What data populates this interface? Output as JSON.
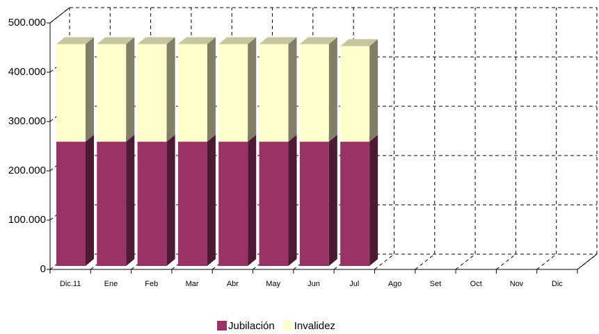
{
  "chart_data": {
    "type": "bar3d_stacked",
    "categories": [
      "Dic.11",
      "Ene",
      "Feb",
      "Mar",
      "Abr",
      "May",
      "Jun",
      "Jul",
      "Ago",
      "Set",
      "Oct",
      "Nov",
      "Dic"
    ],
    "series": [
      {
        "name": "Jubilación",
        "color": "#993366",
        "values": [
          252000,
          252000,
          252000,
          252000,
          252000,
          252000,
          252000,
          252000,
          null,
          null,
          null,
          null,
          null
        ]
      },
      {
        "name": "Invalidez",
        "color": "#FFFFCC",
        "values": [
          198000,
          198000,
          198000,
          198000,
          198000,
          198000,
          198000,
          194000,
          null,
          null,
          null,
          null,
          null
        ]
      }
    ],
    "ylim": [
      0,
      500000
    ],
    "yticks": [
      0,
      {
        "value": 100000,
        "label": "100.000"
      },
      {
        "value": 200000,
        "label": "200.000"
      },
      {
        "value": 300000,
        "label": "300.000"
      },
      {
        "value": 400000,
        "label": "400.000"
      },
      {
        "value": 500000,
        "label": "500.000"
      }
    ],
    "grid": true,
    "legend": "bottom"
  }
}
